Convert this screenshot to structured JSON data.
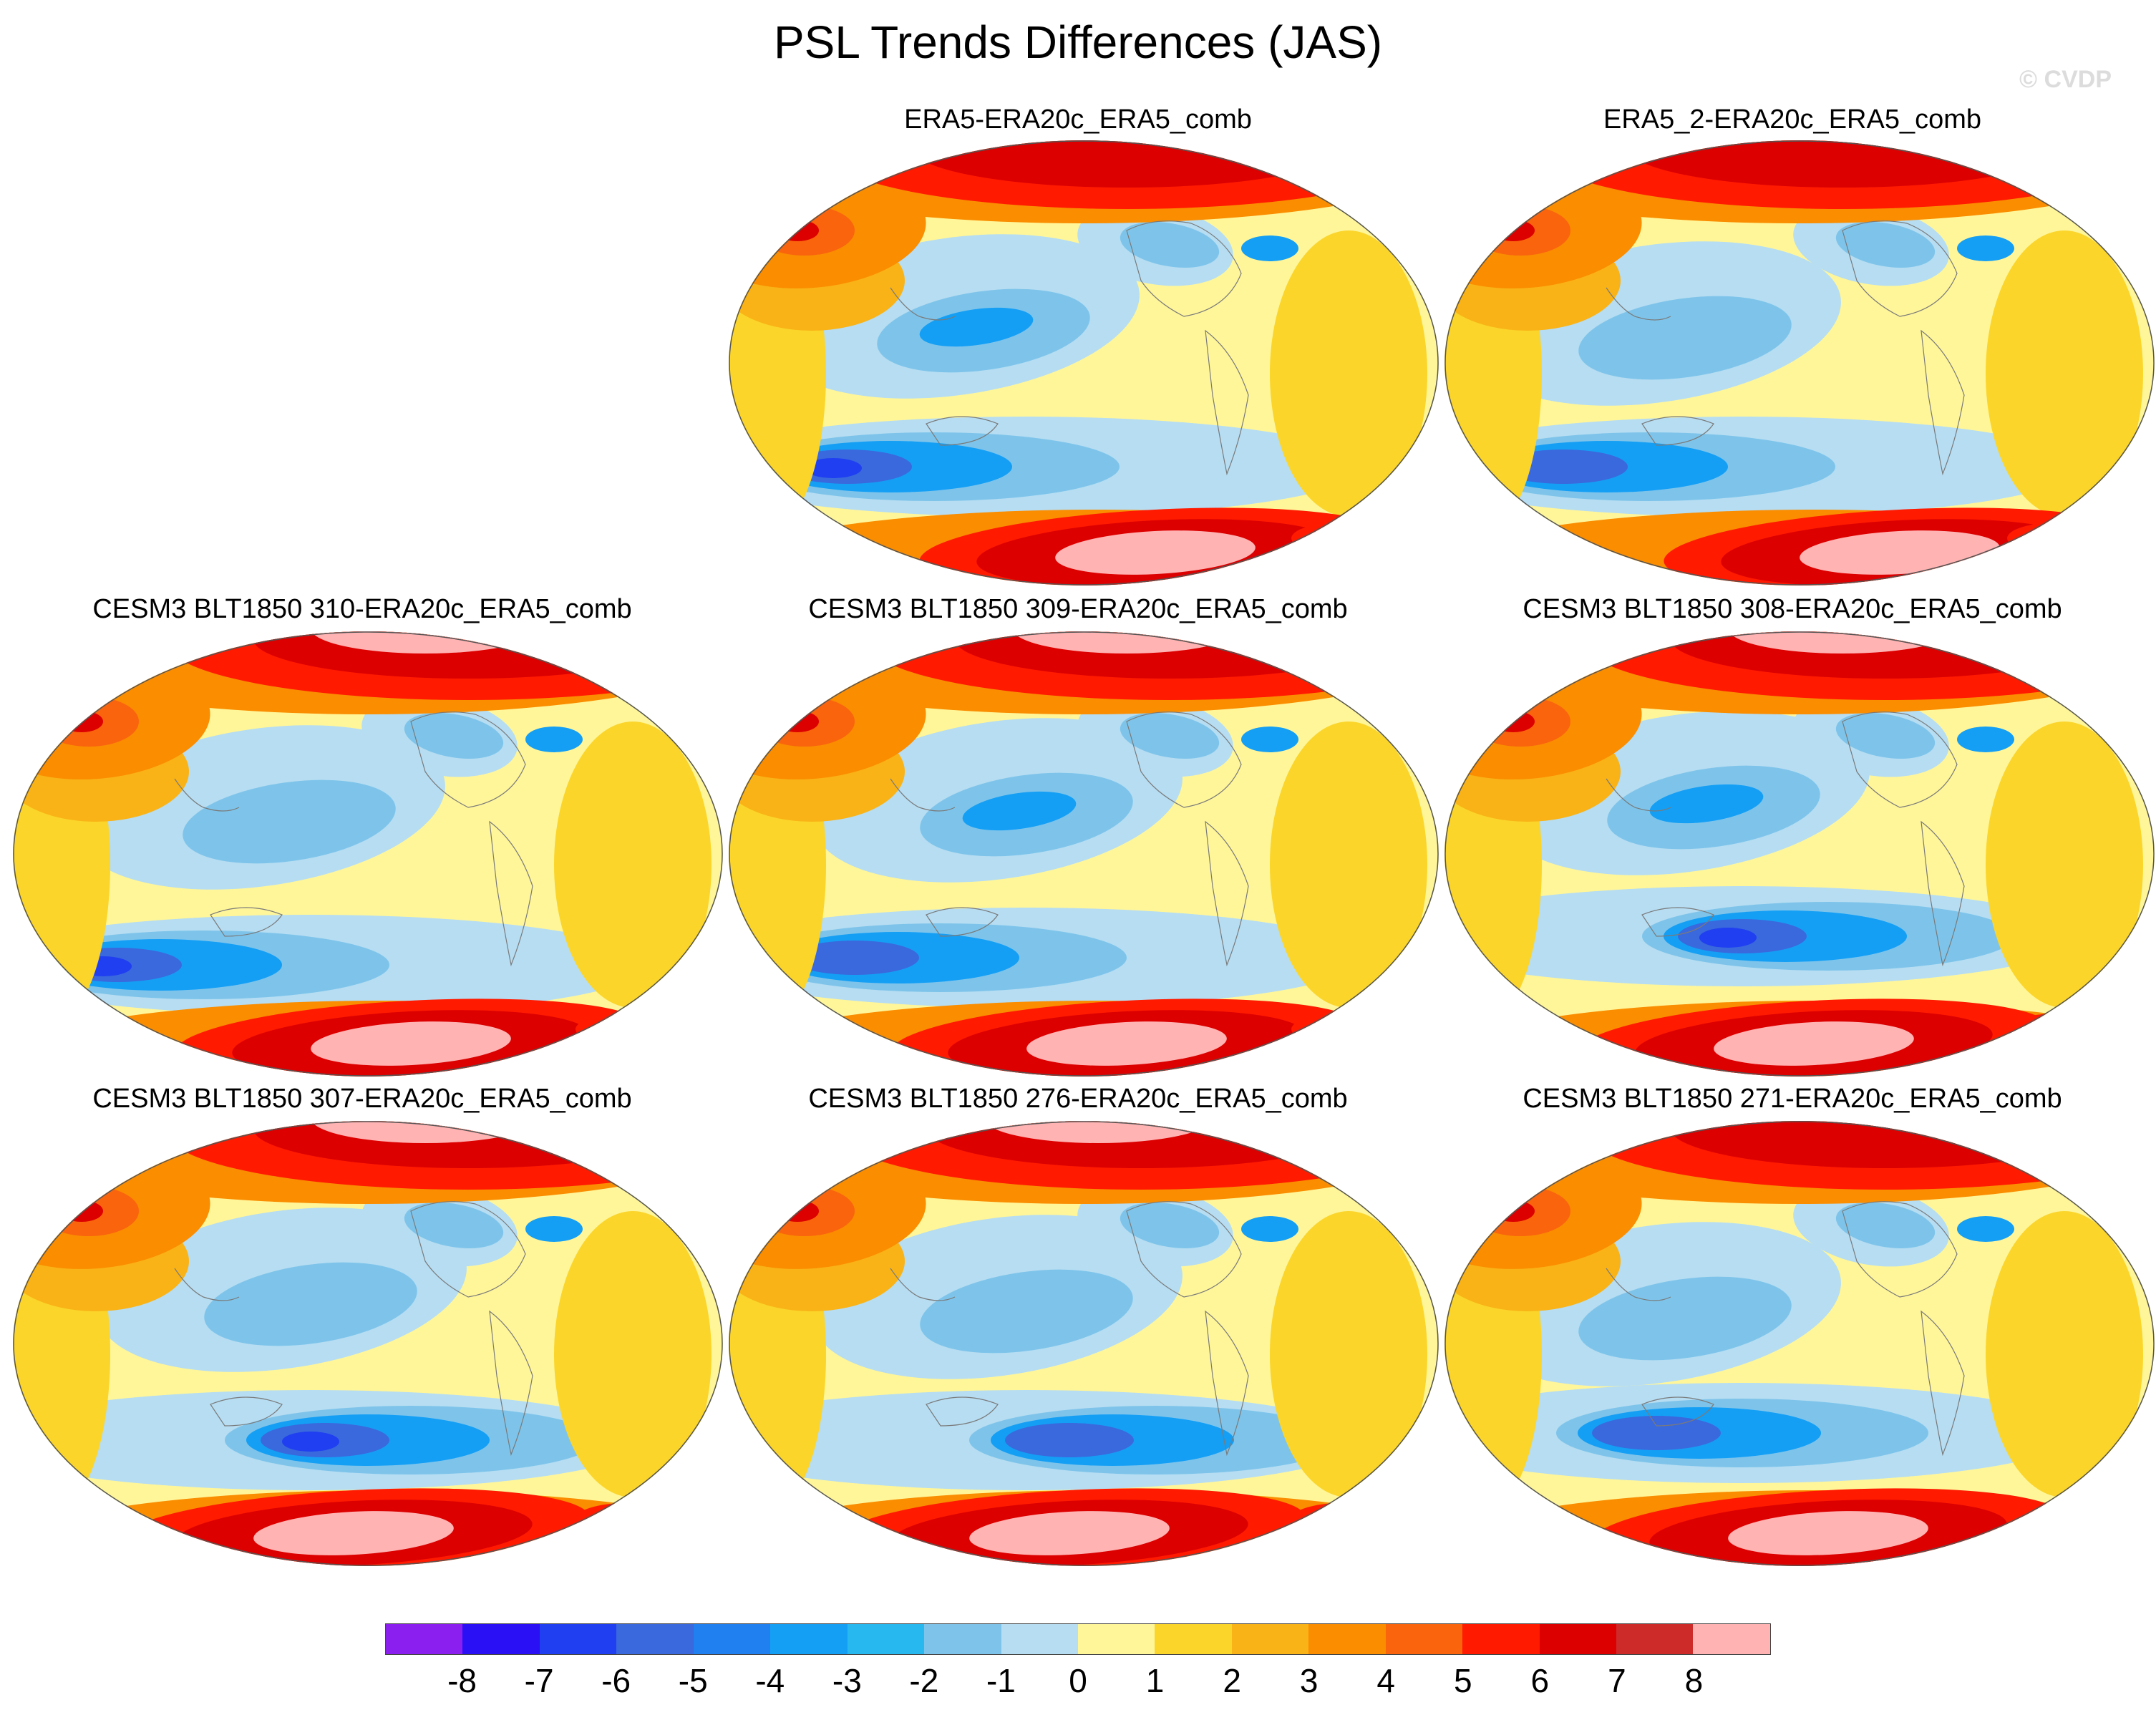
{
  "figure": {
    "title": "PSL Trends Differences (JAS)",
    "watermark": "© CVDP"
  },
  "panels": [
    {
      "title": "ERA5-ERA20c_ERA5_comb",
      "dataset": "ERA5"
    },
    {
      "title": "ERA5_2-ERA20c_ERA5_comb",
      "dataset": "ERA5_2"
    },
    {
      "title": "CESM3 BLT1850 310-ERA20c_ERA5_comb",
      "dataset": "CESM3 BLT1850 310"
    },
    {
      "title": "CESM3 BLT1850 309-ERA20c_ERA5_comb",
      "dataset": "CESM3 BLT1850 309"
    },
    {
      "title": "CESM3 BLT1850 308-ERA20c_ERA5_comb",
      "dataset": "CESM3 BLT1850 308"
    },
    {
      "title": "CESM3 BLT1850 307-ERA20c_ERA5_comb",
      "dataset": "CESM3 BLT1850 307"
    },
    {
      "title": "CESM3 BLT1850 276-ERA20c_ERA5_comb",
      "dataset": "CESM3 BLT1850 276"
    },
    {
      "title": "CESM3 BLT1850 271-ERA20c_ERA5_comb",
      "dataset": "CESM3 BLT1850 271"
    }
  ],
  "colorbar": {
    "labels": [
      "-8",
      "-7",
      "-6",
      "-5",
      "-4",
      "-3",
      "-2",
      "-1",
      "0",
      "1",
      "2",
      "3",
      "4",
      "5",
      "6",
      "7",
      "8"
    ],
    "colors": [
      "#8a1ff0",
      "#2a10f5",
      "#1f3ff0",
      "#3a68dd",
      "#2080f0",
      "#149ff5",
      "#27b8f0",
      "#7ec4ea",
      "#b6ddf2",
      "#fff69a",
      "#fbd52a",
      "#f9b316",
      "#fa8d00",
      "#f9640d",
      "#ff1a00",
      "#dc0000",
      "#cd2a2a",
      "#ffb3b3"
    ]
  },
  "chart_data": {
    "type": "map",
    "title": "PSL Trends Differences (JAS)",
    "projection": "global elliptical (Robinson-like), Pacific-centered",
    "variable": "PSL trend difference",
    "season": "JAS",
    "levels": [
      -8,
      -7,
      -6,
      -5,
      -4,
      -3,
      -2,
      -1,
      0,
      1,
      2,
      3,
      4,
      5,
      6,
      7,
      8
    ],
    "layout": "3x3 grid, top-left panel empty",
    "panel_count": 8
  }
}
